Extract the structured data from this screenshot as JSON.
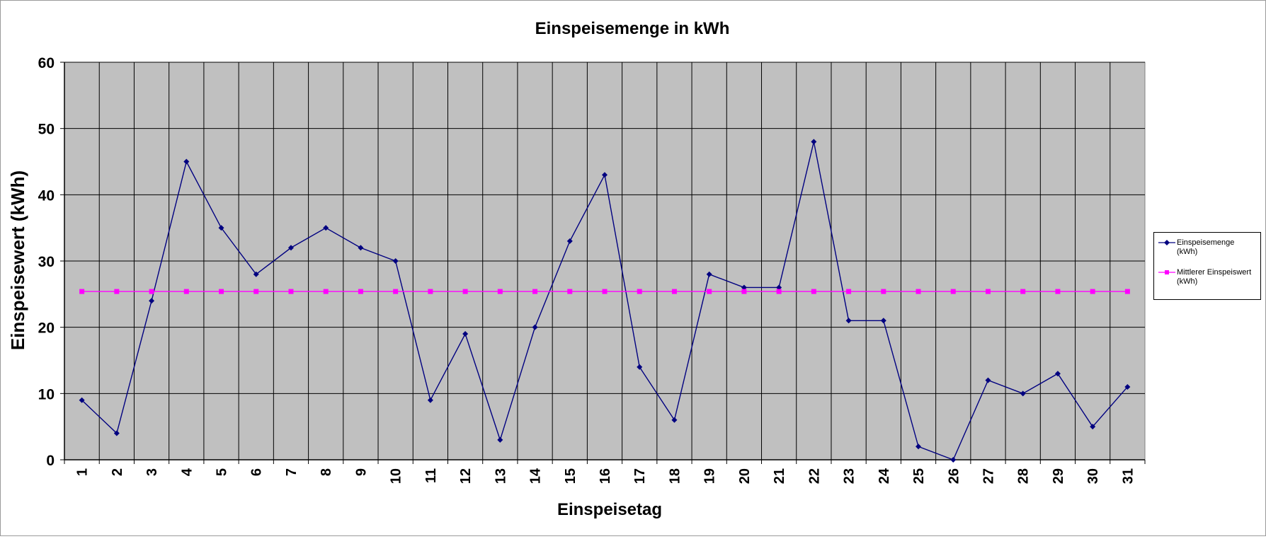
{
  "chart_data": {
    "type": "line",
    "title": "Einspeisemenge in kWh",
    "xlabel": "Einspeisetag",
    "ylabel": "Einspeisewert  (kWh)",
    "ylim": [
      0,
      60
    ],
    "yticks": [
      "0",
      "10",
      "20",
      "30",
      "40",
      "50",
      "60"
    ],
    "categories": [
      "1",
      "2",
      "3",
      "4",
      "5",
      "6",
      "7",
      "8",
      "9",
      "10",
      "11",
      "12",
      "13",
      "14",
      "15",
      "16",
      "17",
      "18",
      "19",
      "20",
      "21",
      "22",
      "23",
      "24",
      "25",
      "26",
      "27",
      "28",
      "29",
      "30",
      "31"
    ],
    "grid": true,
    "legend_position": "right",
    "plot_background": "#c0c0c0",
    "series": [
      {
        "name": "Einspeisemenge (kWh)",
        "color": "#000080",
        "marker": "diamond",
        "values": [
          9,
          4,
          24,
          45,
          35,
          28,
          32,
          35,
          32,
          30,
          9,
          19,
          3,
          20,
          33,
          43,
          14,
          6,
          28,
          26,
          26,
          48,
          21,
          21,
          2,
          0,
          12,
          10,
          13,
          5,
          11
        ]
      },
      {
        "name": "Mittlerer Einspeiswert (kWh)",
        "color": "#ff00ff",
        "marker": "square",
        "values": [
          25.4,
          25.4,
          25.4,
          25.4,
          25.4,
          25.4,
          25.4,
          25.4,
          25.4,
          25.4,
          25.4,
          25.4,
          25.4,
          25.4,
          25.4,
          25.4,
          25.4,
          25.4,
          25.4,
          25.4,
          25.4,
          25.4,
          25.4,
          25.4,
          25.4,
          25.4,
          25.4,
          25.4,
          25.4,
          25.4,
          25.4
        ]
      }
    ]
  },
  "legend": {
    "items": [
      {
        "line1": "Einspeisemenge",
        "line2": "(kWh)"
      },
      {
        "line1": "Mittlerer Einspeiswert",
        "line2": "(kWh)"
      }
    ]
  }
}
